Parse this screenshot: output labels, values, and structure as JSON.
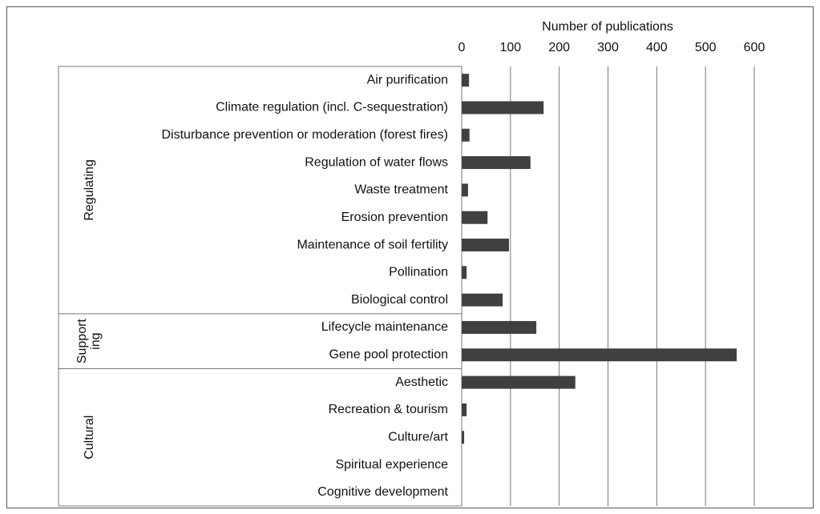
{
  "chart_data": {
    "type": "bar",
    "orientation": "horizontal",
    "xlabel": "Number  of publications",
    "categories": [
      "Air purification",
      "Climate regulation (incl. C-sequestration)",
      "Disturbance prevention or moderation (forest fires)",
      "Regulation of water flows",
      "Waste treatment",
      "Erosion prevention",
      "Maintenance of soil fertility",
      "Pollination",
      "Biological control",
      "Lifecycle maintenance",
      "Gene pool protection",
      "Aesthetic",
      "Recreation & tourism",
      "Culture/art",
      "Spiritual experience",
      "Cognitive development"
    ],
    "values": [
      15,
      168,
      16,
      141,
      13,
      53,
      97,
      10,
      84,
      153,
      564,
      233,
      10,
      5,
      0,
      0
    ],
    "color": "#404040",
    "groups": [
      {
        "lines": [
          "Regulating"
        ],
        "start": 0,
        "end": 8
      },
      {
        "lines": [
          "Support",
          "ing"
        ],
        "start": 9,
        "end": 10
      },
      {
        "lines": [
          "Cultural"
        ],
        "start": 11,
        "end": 15
      }
    ],
    "xlim": [
      0,
      600
    ],
    "xticks": [
      0,
      100,
      200,
      300,
      400,
      500,
      600
    ],
    "grid": true
  }
}
